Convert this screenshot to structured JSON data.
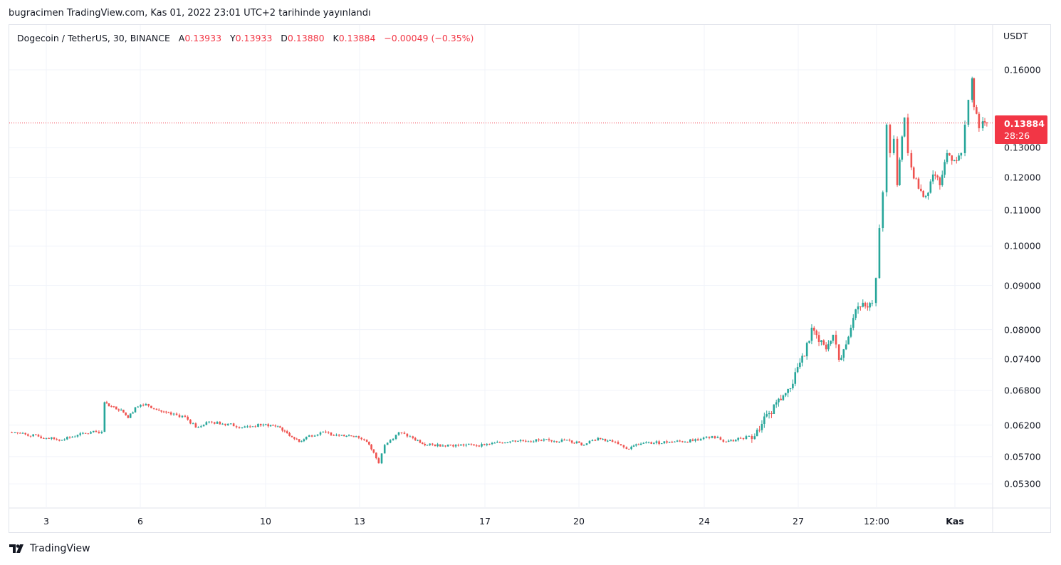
{
  "published": "bugracimen TradingView.com, Kas 01, 2022 23:01 UTC+2 tarihinde yayınlandı",
  "legend": {
    "symbol": "Dogecoin / TetherUS, 30, BINANCE",
    "open_label": "A",
    "open": "0.13933",
    "high_label": "Y",
    "high": "0.13933",
    "low_label": "D",
    "low": "0.13880",
    "close_label": "K",
    "close": "0.13884",
    "change": "−0.00049 (−0.35%)"
  },
  "last_price": {
    "price": "0.13884",
    "countdown": "28:26"
  },
  "brand": "TradingView",
  "colors": {
    "up": "#26a69a",
    "down": "#ef5350",
    "last": "#f23645",
    "grid": "#f0f3fa"
  },
  "chart_data": {
    "type": "candlestick",
    "title": "Dogecoin / TetherUS, 30, BINANCE",
    "ylabel": "USDT",
    "yscale": "log",
    "ylim": [
      0.049,
      0.17
    ],
    "y_ticks": [
      "0.16000",
      "0.13000",
      "0.12000",
      "0.11000",
      "0.10000",
      "0.09000",
      "0.08000",
      "0.07400",
      "0.06800",
      "0.06200",
      "0.05700",
      "0.05300"
    ],
    "x_ticks": [
      {
        "label": "3",
        "day": 3
      },
      {
        "label": "6",
        "day": 6
      },
      {
        "label": "10",
        "day": 10
      },
      {
        "label": "13",
        "day": 13
      },
      {
        "label": "17",
        "day": 17
      },
      {
        "label": "20",
        "day": 20
      },
      {
        "label": "24",
        "day": 24
      },
      {
        "label": "27",
        "day": 27
      },
      {
        "label": "12:00",
        "day": 29.5
      },
      {
        "label": "Kas",
        "day": 32,
        "bold": true
      }
    ],
    "grid": true,
    "x_unit": "day of October 2022 (32 = Nov 1)",
    "price_path": [
      [
        1.8,
        0.0608
      ],
      [
        2.0,
        0.0608
      ],
      [
        3.0,
        0.0599
      ],
      [
        3.5,
        0.0596
      ],
      [
        4.0,
        0.0604
      ],
      [
        4.59,
        0.0609
      ],
      [
        4.77,
        0.0609
      ],
      [
        4.86,
        0.0659
      ],
      [
        5.0,
        0.0652
      ],
      [
        5.39,
        0.0646
      ],
      [
        5.61,
        0.0632
      ],
      [
        5.84,
        0.065
      ],
      [
        6.18,
        0.0656
      ],
      [
        6.52,
        0.0646
      ],
      [
        6.98,
        0.0638
      ],
      [
        7.43,
        0.0634
      ],
      [
        7.77,
        0.0616
      ],
      [
        8.11,
        0.0625
      ],
      [
        8.8,
        0.0622
      ],
      [
        9.25,
        0.0616
      ],
      [
        9.93,
        0.0621
      ],
      [
        10.39,
        0.0618
      ],
      [
        10.61,
        0.061
      ],
      [
        11.07,
        0.0593
      ],
      [
        11.3,
        0.0601
      ],
      [
        11.75,
        0.0608
      ],
      [
        12.43,
        0.0604
      ],
      [
        12.89,
        0.0602
      ],
      [
        13.23,
        0.0593
      ],
      [
        13.45,
        0.0576
      ],
      [
        13.61,
        0.056
      ],
      [
        13.8,
        0.0588
      ],
      [
        14.25,
        0.0608
      ],
      [
        14.7,
        0.0599
      ],
      [
        15.16,
        0.0588
      ],
      [
        16.07,
        0.0588
      ],
      [
        16.98,
        0.0588
      ],
      [
        17.89,
        0.0595
      ],
      [
        18.8,
        0.0595
      ],
      [
        19.7,
        0.0595
      ],
      [
        20.16,
        0.0588
      ],
      [
        20.61,
        0.0599
      ],
      [
        21.07,
        0.0593
      ],
      [
        21.52,
        0.0582
      ],
      [
        21.98,
        0.059
      ],
      [
        22.89,
        0.0593
      ],
      [
        23.8,
        0.0595
      ],
      [
        24.25,
        0.0602
      ],
      [
        24.7,
        0.0593
      ],
      [
        25.16,
        0.0599
      ],
      [
        25.61,
        0.0602
      ],
      [
        25.84,
        0.0622
      ],
      [
        26.07,
        0.064
      ],
      [
        26.3,
        0.0659
      ],
      [
        26.52,
        0.0671
      ],
      [
        26.75,
        0.0684
      ],
      [
        26.98,
        0.0724
      ],
      [
        27.2,
        0.0745
      ],
      [
        27.43,
        0.0804
      ],
      [
        27.66,
        0.0774
      ],
      [
        27.89,
        0.0759
      ],
      [
        28.11,
        0.0789
      ],
      [
        28.3,
        0.0738
      ],
      [
        28.45,
        0.0759
      ],
      [
        28.68,
        0.0804
      ],
      [
        28.91,
        0.0851
      ],
      [
        29.14,
        0.0851
      ],
      [
        29.36,
        0.0859
      ],
      [
        29.48,
        0.0918
      ],
      [
        29.59,
        0.1049
      ],
      [
        29.7,
        0.1154
      ],
      [
        29.82,
        0.1382
      ],
      [
        29.93,
        0.1281
      ],
      [
        30.05,
        0.1331
      ],
      [
        30.16,
        0.1176
      ],
      [
        30.39,
        0.1409
      ],
      [
        30.5,
        0.1281
      ],
      [
        30.61,
        0.1233
      ],
      [
        30.84,
        0.1165
      ],
      [
        31.07,
        0.1143
      ],
      [
        31.3,
        0.121
      ],
      [
        31.52,
        0.1176
      ],
      [
        31.75,
        0.1281
      ],
      [
        31.98,
        0.1257
      ],
      [
        32.2,
        0.1281
      ],
      [
        32.32,
        0.1382
      ],
      [
        32.43,
        0.1477
      ],
      [
        32.55,
        0.1564
      ],
      [
        32.61,
        0.1449
      ],
      [
        32.77,
        0.1369
      ],
      [
        32.89,
        0.1395
      ],
      [
        33.02,
        0.1388
      ]
    ]
  }
}
